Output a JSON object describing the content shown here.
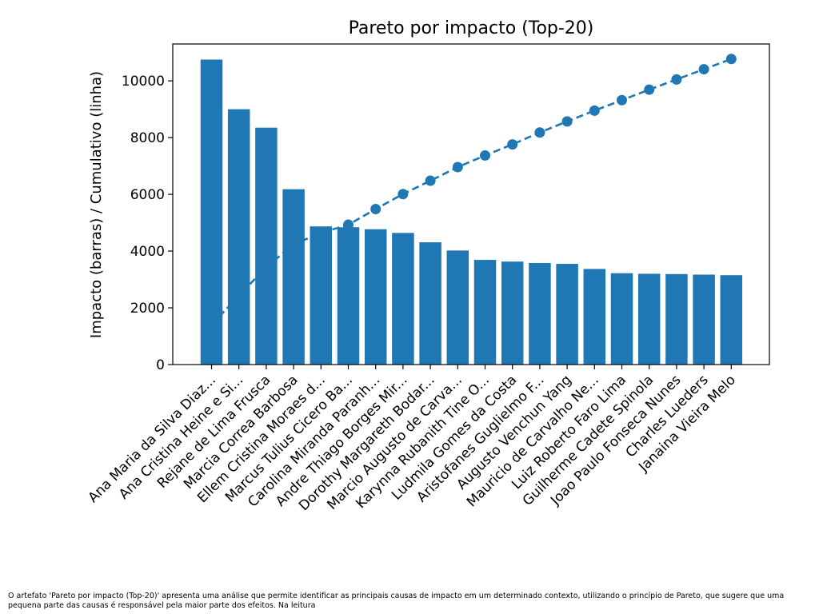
{
  "chart_data": {
    "type": "bar",
    "title": "Pareto por impacto (Top-20)",
    "xlabel": "",
    "ylabel": "Impacto (barras) / Cumulativo (linha)",
    "ylim": [
      0,
      11300
    ],
    "yticks": [
      0,
      2000,
      4000,
      6000,
      8000,
      10000
    ],
    "grid": false,
    "categories": [
      "Ana Maria da Silva Diaz...",
      "Ana Cristina Heine e Si...",
      "Rejane de Lima Frusca",
      "Marcia Correa Barbosa",
      "Ellem Cristina Moraes d...",
      "Marcus Tulius Cicero Ba...",
      "Carolina Miranda Paranh...",
      "Andre Thiago Borges Mir...",
      "Dorothy Margareth Bodar...",
      "Marcio Augusto de Carva...",
      "Karynna Rubanith Tine O...",
      "Ludmila Gomes da Costa",
      "Aristofanes Guglielmo F...",
      "Augusto Venchun Yang",
      "Mauricio de Carvalho Ne...",
      "Luiz Roberto Faro Lima",
      "Guilherme Cadete Spinola",
      "Joao Paulo Fonseca Nunes",
      "Charles Lueders",
      "Janaina Vieira Melo"
    ],
    "series": [
      {
        "type": "bar",
        "color": "#1f77b4",
        "values": [
          10750,
          9000,
          8350,
          6180,
          4870,
          4840,
          4770,
          4640,
          4310,
          4020,
          3690,
          3630,
          3580,
          3550,
          3370,
          3220,
          3200,
          3190,
          3170,
          3150
        ]
      },
      {
        "type": "line",
        "style": "dashed-with-markers",
        "color": "#1f77b4",
        "values": [
          1400,
          2430,
          3430,
          4240,
          4640,
          4930,
          5480,
          6010,
          6480,
          6960,
          7370,
          7760,
          8180,
          8570,
          8950,
          9320,
          9690,
          10050,
          10410,
          10770
        ]
      }
    ]
  },
  "caption": "O artefato 'Pareto por impacto (Top-20)' apresenta uma análise que permite identificar as principais causas de impacto em um determinado contexto, utilizando o princípio de Pareto, que sugere que uma pequena parte das causas é responsável pela maior parte dos efeitos. Na leitura"
}
